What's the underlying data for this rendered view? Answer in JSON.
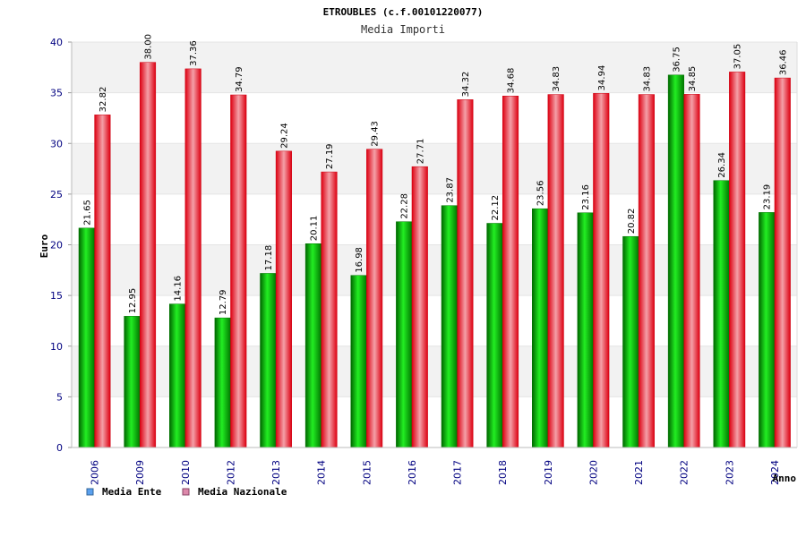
{
  "chart_data": {
    "type": "bar",
    "title": "ETROUBLES (c.f.00101220077)",
    "subtitle": "Media Importi",
    "ylabel": "Euro",
    "xlabel": "Anno",
    "ylim": [
      0,
      40
    ],
    "yticks": [
      0,
      5,
      10,
      15,
      20,
      25,
      30,
      35,
      40
    ],
    "yticks_labels": [
      "0",
      "5",
      "10",
      "15",
      "20",
      "25",
      "30",
      "35",
      "40"
    ],
    "categories": [
      "2006",
      "2009",
      "2010",
      "2012",
      "2013",
      "2014",
      "2015",
      "2016",
      "2017",
      "2018",
      "2019",
      "2020",
      "2021",
      "2022",
      "2023",
      "2024"
    ],
    "series": [
      {
        "name": "Media Ente",
        "color": "#00aa00",
        "legend_color": "#5aa0ee",
        "values": [
          21.65,
          12.95,
          14.16,
          12.79,
          17.18,
          20.11,
          16.98,
          22.28,
          23.87,
          22.12,
          23.56,
          23.16,
          20.82,
          36.75,
          26.34,
          23.19
        ],
        "labels": [
          "21.65",
          "12.95",
          "14.16",
          "12.79",
          "17.18",
          "20.11",
          "16.98",
          "22.28",
          "23.87",
          "22.12",
          "23.56",
          "23.16",
          "20.82",
          "36.75",
          "26.34",
          "23.19"
        ]
      },
      {
        "name": "Media Nazionale",
        "color": "#ee1122",
        "legend_color": "#dd88aa",
        "values": [
          32.82,
          38.0,
          37.36,
          34.79,
          29.24,
          27.19,
          29.43,
          27.71,
          34.32,
          34.68,
          34.83,
          34.94,
          34.83,
          34.85,
          37.05,
          36.46
        ],
        "labels": [
          "32.82",
          "38.00",
          "37.36",
          "34.79",
          "29.24",
          "27.19",
          "29.43",
          "27.71",
          "34.32",
          "34.68",
          "34.83",
          "34.94",
          "34.83",
          "34.85",
          "37.05",
          "36.46"
        ]
      }
    ],
    "grid": true,
    "legend_position": "bottom-left"
  }
}
